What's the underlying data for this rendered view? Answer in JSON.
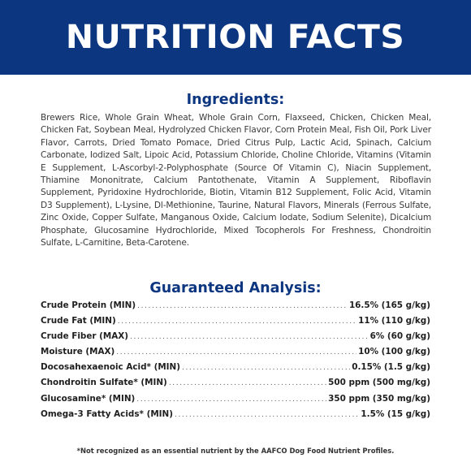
{
  "header": {
    "title": "NUTRITION FACTS"
  },
  "ingredients": {
    "heading": "Ingredients:",
    "text": "Brewers Rice, Whole Grain Wheat, Whole Grain Corn, Flaxseed, Chicken, Chicken Meal, Chicken Fat, Soybean Meal, Hydrolyzed Chicken Flavor, Corn Protein Meal, Fish Oil, Pork Liver Flavor, Carrots, Dried Tomato Pomace, Dried Citrus Pulp, Lactic Acid, Spinach, Calcium Carbonate, Iodized Salt, Lipoic Acid, Potassium Chloride, Choline Chloride, Vitamins (Vitamin E Supplement, L-Ascorbyl-2-Polyphosphate (Source Of Vitamin C), Niacin Supplement, Thiamine Mononitrate, Calcium Pantothenate, Vitamin A Supplement, Riboflavin Supplement, Pyridoxine Hydrochloride, Biotin, Vitamin B12 Supplement, Folic Acid, Vitamin D3 Supplement), L-Lysine, Dl-Methionine, Taurine, Natural Flavors, Minerals (Ferrous Sulfate, Zinc Oxide, Copper Sulfate, Manganous Oxide, Calcium Iodate, Sodium Selenite), Dicalcium Phosphate, Glucosamine Hydrochloride, Mixed Tocopherols For Freshness, Chondroitin Sulfate, L-Carnitine, Beta-Carotene."
  },
  "analysis": {
    "heading": "Guaranteed Analysis:",
    "rows": [
      {
        "label": "Crude Protein (MIN)",
        "value": "16.5% (165 g/kg)"
      },
      {
        "label": "Crude Fat (MIN)",
        "value": "11% (110 g/kg)"
      },
      {
        "label": "Crude Fiber (MAX)",
        "value": "6% (60 g/kg)"
      },
      {
        "label": "Moisture (MAX)",
        "value": "10% (100 g/kg)"
      },
      {
        "label": "Docosahexaenoic Acid* (MIN)",
        "value": "0.15% (1.5 g/kg)"
      },
      {
        "label": "Chondroitin Sulfate* (MIN)",
        "value": "500 ppm (500 mg/kg)"
      },
      {
        "label": "Glucosamine* (MIN)",
        "value": "350 ppm (350 mg/kg)"
      },
      {
        "label": "Omega-3 Fatty Acids* (MIN)",
        "value": "1.5% (15 g/kg)"
      }
    ]
  },
  "footnote": "*Not recognized as an essential nutrient by the AAFCO Dog Food Nutrient Profiles.",
  "colors": {
    "banner": "#0d3680",
    "heading": "#0d3680"
  }
}
